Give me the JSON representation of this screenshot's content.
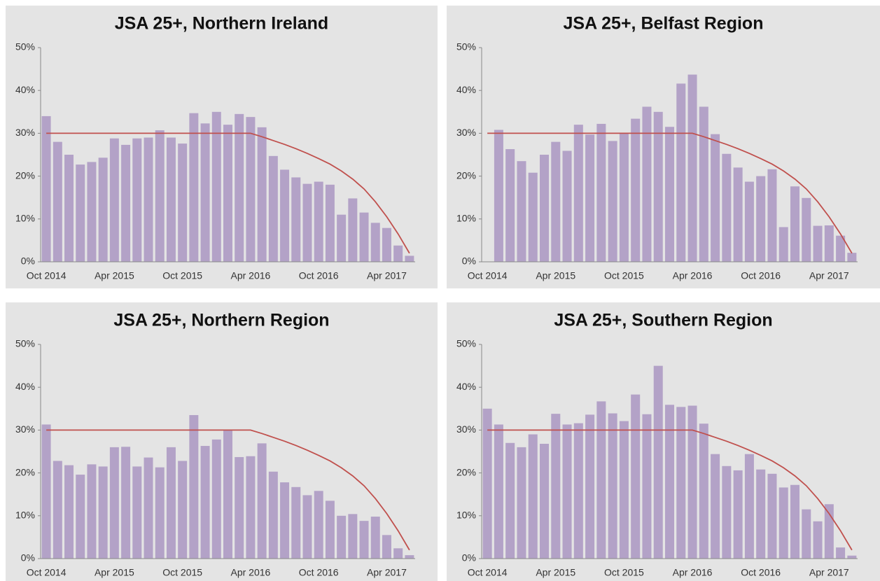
{
  "chart_data": [
    {
      "type": "bar",
      "title": "JSA 25+, Northern Ireland",
      "categories": [
        "Oct 2014",
        null,
        null,
        null,
        null,
        null,
        "Apr 2015",
        null,
        null,
        null,
        null,
        null,
        "Oct 2015",
        null,
        null,
        null,
        null,
        null,
        "Apr 2016",
        null,
        null,
        null,
        null,
        null,
        "Oct 2016",
        null,
        null,
        null,
        null,
        null,
        "Apr 2017",
        null,
        null
      ],
      "series": [
        {
          "type": "bar",
          "color": "#b3a2c7",
          "values": [
            34,
            28,
            25,
            22.7,
            23.3,
            24.3,
            28.8,
            27.3,
            28.8,
            29,
            30.7,
            29,
            27.6,
            34.7,
            32.3,
            35,
            32,
            34.5,
            33.8,
            31.4,
            24.7,
            21.5,
            19.7,
            18.2,
            18.7,
            18,
            11,
            14.8,
            11.5,
            9.1,
            7.9,
            3.8,
            1.4
          ]
        },
        {
          "type": "line",
          "color": "#c0504d",
          "values": [
            30,
            30,
            30,
            30,
            30,
            30,
            30,
            30,
            30,
            30,
            30,
            30,
            30,
            30,
            30,
            30,
            30,
            30,
            30,
            29.2,
            28.3,
            27.4,
            26.4,
            25.3,
            24.1,
            22.8,
            21.2,
            19.3,
            17,
            14,
            10.5,
            6.5,
            2
          ]
        }
      ],
      "ylim": [
        0,
        50
      ],
      "yticks": [
        {
          "value": 0,
          "label": "0%"
        },
        {
          "value": 10,
          "label": "10%"
        },
        {
          "value": 20,
          "label": "20%"
        },
        {
          "value": 30,
          "label": "30%"
        },
        {
          "value": 40,
          "label": "40%"
        },
        {
          "value": 50,
          "label": "50%"
        }
      ]
    },
    {
      "type": "bar",
      "title": "JSA 25+, Belfast Region",
      "categories": [
        "Oct 2014",
        null,
        null,
        null,
        null,
        null,
        "Apr 2015",
        null,
        null,
        null,
        null,
        null,
        "Oct 2015",
        null,
        null,
        null,
        null,
        null,
        "Apr 2016",
        null,
        null,
        null,
        null,
        null,
        "Oct 2016",
        null,
        null,
        null,
        null,
        null,
        "Apr 2017",
        null,
        null
      ],
      "series": [
        {
          "type": "bar",
          "color": "#b3a2c7",
          "values": [
            null,
            30.8,
            26.3,
            23.5,
            20.8,
            25,
            28,
            25.9,
            32,
            29.7,
            32.2,
            28.2,
            30,
            33.4,
            36.2,
            35,
            31.5,
            41.6,
            43.7,
            36.2,
            29.8,
            25.2,
            22,
            18.7,
            20,
            21.6,
            8.1,
            17.6,
            14.9,
            8.4,
            8.5,
            6.1,
            2.1
          ]
        },
        {
          "type": "line",
          "color": "#c0504d",
          "values": [
            30,
            30,
            30,
            30,
            30,
            30,
            30,
            30,
            30,
            30,
            30,
            30,
            30,
            30,
            30,
            30,
            30,
            30,
            30,
            29.2,
            28.3,
            27.4,
            26.4,
            25.3,
            24.1,
            22.8,
            21.2,
            19.3,
            17,
            14,
            10.5,
            6.5,
            2
          ]
        }
      ],
      "ylim": [
        0,
        50
      ],
      "yticks": [
        {
          "value": 0,
          "label": "0%"
        },
        {
          "value": 10,
          "label": "10%"
        },
        {
          "value": 20,
          "label": "20%"
        },
        {
          "value": 30,
          "label": "30%"
        },
        {
          "value": 40,
          "label": "40%"
        },
        {
          "value": 50,
          "label": "50%"
        }
      ]
    },
    {
      "type": "bar",
      "title": "JSA 25+, Northern Region",
      "categories": [
        "Oct 2014",
        null,
        null,
        null,
        null,
        null,
        "Apr 2015",
        null,
        null,
        null,
        null,
        null,
        "Oct 2015",
        null,
        null,
        null,
        null,
        null,
        "Apr 2016",
        null,
        null,
        null,
        null,
        null,
        "Oct 2016",
        null,
        null,
        null,
        null,
        null,
        "Apr 2017",
        null,
        null
      ],
      "series": [
        {
          "type": "bar",
          "color": "#b3a2c7",
          "values": [
            31.3,
            22.8,
            21.8,
            19.6,
            22,
            21.5,
            26,
            26.1,
            21.5,
            23.6,
            21.3,
            26,
            22.8,
            33.5,
            26.3,
            27.8,
            29.9,
            23.7,
            23.9,
            26.9,
            20.3,
            17.8,
            16.7,
            14.8,
            15.8,
            13.5,
            10,
            10.4,
            8.8,
            9.8,
            5.5,
            2.4,
            0.8
          ]
        },
        {
          "type": "line",
          "color": "#c0504d",
          "values": [
            30,
            30,
            30,
            30,
            30,
            30,
            30,
            30,
            30,
            30,
            30,
            30,
            30,
            30,
            30,
            30,
            30,
            30,
            30,
            29.2,
            28.3,
            27.4,
            26.4,
            25.3,
            24.1,
            22.8,
            21.2,
            19.3,
            17,
            14,
            10.5,
            6.5,
            2
          ]
        }
      ],
      "ylim": [
        0,
        50
      ],
      "yticks": [
        {
          "value": 0,
          "label": "0%"
        },
        {
          "value": 10,
          "label": "10%"
        },
        {
          "value": 20,
          "label": "20%"
        },
        {
          "value": 30,
          "label": "30%"
        },
        {
          "value": 40,
          "label": "40%"
        },
        {
          "value": 50,
          "label": "50%"
        }
      ]
    },
    {
      "type": "bar",
      "title": "JSA 25+, Southern Region",
      "categories": [
        "Oct 2014",
        null,
        null,
        null,
        null,
        null,
        "Apr 2015",
        null,
        null,
        null,
        null,
        null,
        "Oct 2015",
        null,
        null,
        null,
        null,
        null,
        "Apr 2016",
        null,
        null,
        null,
        null,
        null,
        "Oct 2016",
        null,
        null,
        null,
        null,
        null,
        "Apr 2017",
        null,
        null
      ],
      "series": [
        {
          "type": "bar",
          "color": "#b3a2c7",
          "values": [
            35,
            31.3,
            27,
            26,
            29,
            26.8,
            33.8,
            31.3,
            31.6,
            33.6,
            36.7,
            33.9,
            32.1,
            38.3,
            33.7,
            45,
            35.9,
            35.4,
            35.7,
            31.5,
            24.4,
            21.6,
            20.6,
            24.4,
            20.8,
            19.8,
            16.6,
            17.2,
            11.5,
            8.7,
            12.7,
            2.6,
            0.7
          ]
        },
        {
          "type": "line",
          "color": "#c0504d",
          "values": [
            30,
            30,
            30,
            30,
            30,
            30,
            30,
            30,
            30,
            30,
            30,
            30,
            30,
            30,
            30,
            30,
            30,
            30,
            30,
            29.2,
            28.3,
            27.4,
            26.4,
            25.3,
            24.1,
            22.8,
            21.2,
            19.3,
            17,
            14,
            10.5,
            6.5,
            2
          ]
        }
      ],
      "ylim": [
        0,
        50
      ],
      "yticks": [
        {
          "value": 0,
          "label": "0%"
        },
        {
          "value": 10,
          "label": "10%"
        },
        {
          "value": 20,
          "label": "20%"
        },
        {
          "value": 30,
          "label": "30%"
        },
        {
          "value": 40,
          "label": "40%"
        },
        {
          "value": 50,
          "label": "50%"
        }
      ]
    }
  ]
}
